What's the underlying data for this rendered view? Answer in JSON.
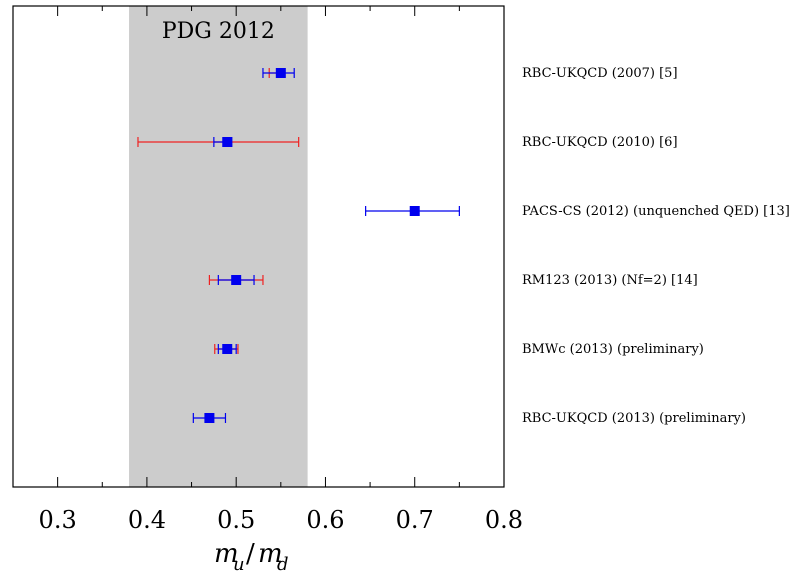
{
  "chart_data": {
    "type": "scatter",
    "title": "",
    "xlabel": "m_u/m_d",
    "ylabel": "",
    "xlim": [
      0.25,
      0.8
    ],
    "xticks": [
      "0.3",
      "0.4",
      "0.5",
      "0.6",
      "0.7",
      "0.8"
    ],
    "band": {
      "label": "PDG 2012",
      "range": [
        0.38,
        0.58
      ],
      "color": "#cccccc"
    },
    "colors": {
      "inner_error": "#0000ee",
      "outer_error": "#ee2222",
      "marker": "#0000ee"
    },
    "points": [
      {
        "label": "RBC-UKQCD (2007) [5]",
        "value": 0.55,
        "err_inner": [
          0.53,
          0.565
        ],
        "err_outer": [
          0.537,
          0.55
        ]
      },
      {
        "label": "RBC-UKQCD (2010) [6]",
        "value": 0.49,
        "err_inner": [
          0.475,
          0.495
        ],
        "err_outer": [
          0.39,
          0.57
        ]
      },
      {
        "label": "PACS-CS (2012) (unquenched QED) [13]",
        "value": 0.7,
        "err_inner": [
          0.645,
          0.75
        ],
        "err_outer": null
      },
      {
        "label": "RM123 (2013) (Nf=2) [14]",
        "value": 0.5,
        "err_inner": [
          0.48,
          0.52
        ],
        "err_outer": [
          0.47,
          0.53
        ]
      },
      {
        "label": "BMWc (2013) (preliminary)",
        "value": 0.49,
        "err_inner": [
          0.48,
          0.5
        ],
        "err_outer": [
          0.476,
          0.502
        ]
      },
      {
        "label": "RBC-UKQCD (2013) (preliminary)",
        "value": 0.47,
        "err_inner": [
          0.452,
          0.488
        ],
        "err_outer": null
      }
    ]
  }
}
